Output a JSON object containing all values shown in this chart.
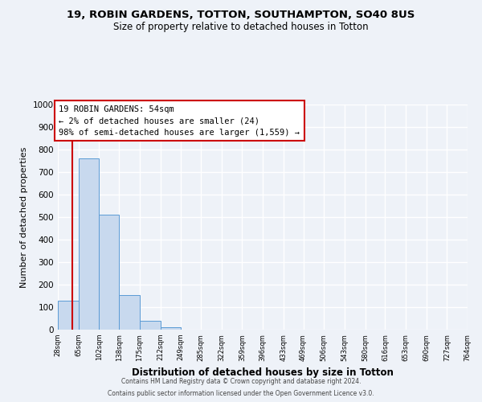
{
  "title": "19, ROBIN GARDENS, TOTTON, SOUTHAMPTON, SO40 8US",
  "subtitle": "Size of property relative to detached houses in Totton",
  "xlabel": "Distribution of detached houses by size in Totton",
  "ylabel": "Number of detached properties",
  "bar_heights": [
    128,
    760,
    510,
    152,
    40,
    12,
    0,
    0,
    0,
    0,
    0,
    0,
    0,
    0,
    0,
    0,
    0,
    0,
    0,
    0
  ],
  "bin_edges": [
    28,
    65,
    102,
    138,
    175,
    212,
    249,
    285,
    322,
    359,
    396,
    433,
    469,
    506,
    543,
    580,
    616,
    653,
    690,
    727,
    764
  ],
  "tick_labels": [
    "28sqm",
    "65sqm",
    "102sqm",
    "138sqm",
    "175sqm",
    "212sqm",
    "249sqm",
    "285sqm",
    "322sqm",
    "359sqm",
    "396sqm",
    "433sqm",
    "469sqm",
    "506sqm",
    "543sqm",
    "580sqm",
    "616sqm",
    "653sqm",
    "690sqm",
    "727sqm",
    "764sqm"
  ],
  "bar_color": "#c8d9ee",
  "bar_edge_color": "#5b9bd5",
  "ylim": [
    0,
    1000
  ],
  "yticks": [
    0,
    100,
    200,
    300,
    400,
    500,
    600,
    700,
    800,
    900,
    1000
  ],
  "vline_x": 54,
  "vline_color": "#cc0000",
  "annotation_title": "19 ROBIN GARDENS: 54sqm",
  "annotation_line1": "← 2% of detached houses are smaller (24)",
  "annotation_line2": "98% of semi-detached houses are larger (1,559) →",
  "annotation_box_color": "#cc0000",
  "footer_line1": "Contains HM Land Registry data © Crown copyright and database right 2024.",
  "footer_line2": "Contains public sector information licensed under the Open Government Licence v3.0.",
  "background_color": "#eef2f8",
  "grid_color": "#ffffff"
}
